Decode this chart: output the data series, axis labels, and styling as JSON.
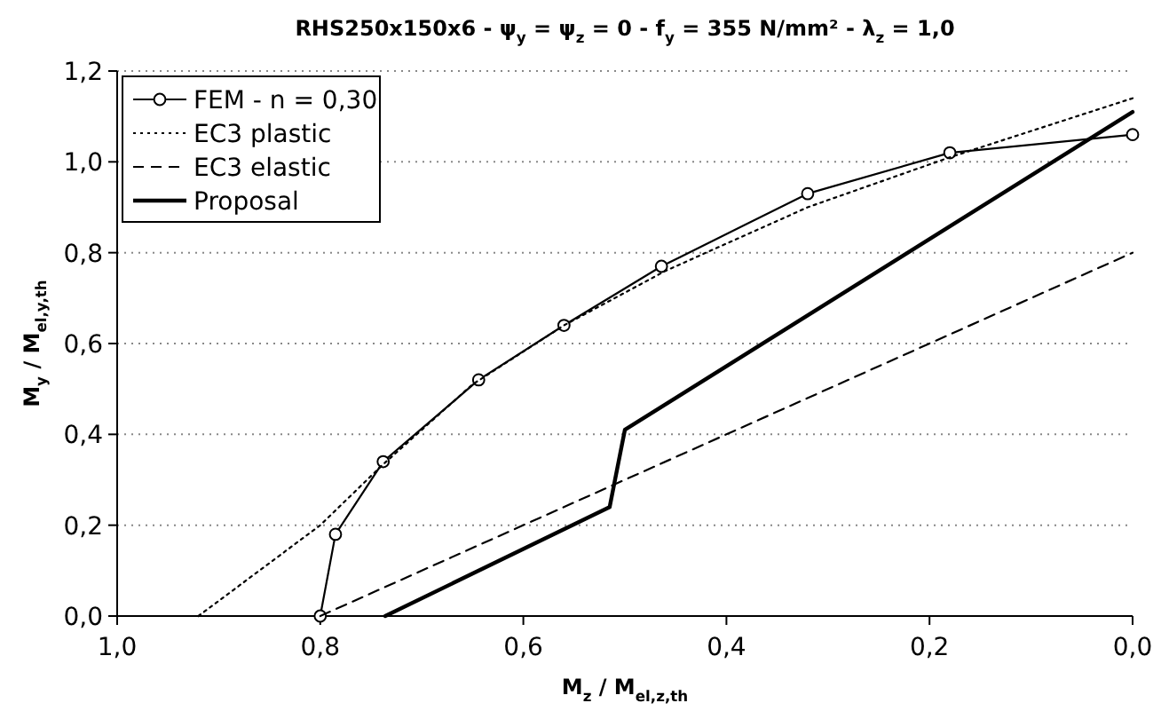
{
  "chart_data": {
    "type": "line",
    "title": "RHS250x150x6 - ψ$_{y}$ = ψ$_{z}$ = 0 - f$_{y}$ = 355 N/mm² - λ$_{z}$ = 1,0",
    "xlabel": "M$_{z}$ / M$_{el,z,th}$",
    "ylabel": "M$_{y}$ / M$_{el,y,th}$",
    "xlim": [
      1,
      0
    ],
    "ylim": [
      0,
      1.2
    ],
    "xticks": [
      {
        "value": 1,
        "label": "1,0"
      },
      {
        "value": 0.8,
        "label": "0,8"
      },
      {
        "value": 0.6,
        "label": "0,6"
      },
      {
        "value": 0.4,
        "label": "0,4"
      },
      {
        "value": 0.2,
        "label": "0,2"
      },
      {
        "value": 0,
        "label": "0,0"
      }
    ],
    "yticks": [
      {
        "value": 0,
        "label": "0,0"
      },
      {
        "value": 0.2,
        "label": "0,2"
      },
      {
        "value": 0.4,
        "label": "0,4"
      },
      {
        "value": 0.6,
        "label": "0,6"
      },
      {
        "value": 0.8,
        "label": "0,8"
      },
      {
        "value": 1,
        "label": "1,0"
      },
      {
        "value": 1.2,
        "label": "1,2"
      }
    ],
    "grid": "y",
    "legend": "top left",
    "series": [
      {
        "name": "FEM - n = 0,30",
        "color": "#000000",
        "marker": "circle",
        "line_style": "solid",
        "x": [
          0.8,
          0.785,
          0.738,
          0.644,
          0.56,
          0.464,
          0.32,
          0.18,
          0.0
        ],
        "values": [
          0,
          0.18,
          0.34,
          0.52,
          0.64,
          0.77,
          0.93,
          1.02,
          1.06
        ]
      },
      {
        "name": "EC3 plastic",
        "color": "#000000",
        "marker": "none",
        "line_style": "dotted",
        "x": [
          0.92,
          0.8,
          0.74,
          0.65,
          0.56,
          0.46,
          0.32,
          0.18,
          0.0
        ],
        "values": [
          0,
          0.2,
          0.33,
          0.51,
          0.64,
          0.76,
          0.9,
          1.01,
          1.14
        ]
      },
      {
        "name": "EC3 elastic",
        "color": "#000000",
        "marker": "none",
        "line_style": "dashed",
        "x": [
          0.8,
          0.0
        ],
        "values": [
          0,
          0.8
        ]
      },
      {
        "name": "Proposal",
        "color": "#000000",
        "marker": "none",
        "line_style": "solid",
        "x": [
          0.736,
          0.515,
          0.5,
          0.0
        ],
        "values": [
          0,
          0.24,
          0.41,
          1.11
        ]
      }
    ]
  }
}
